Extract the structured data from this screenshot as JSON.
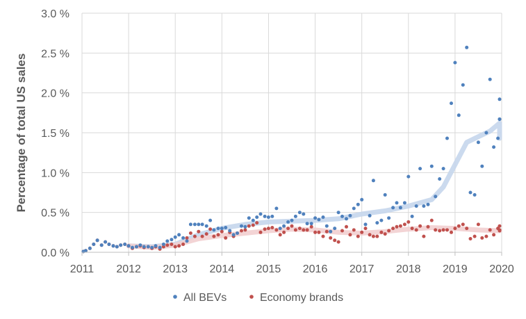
{
  "chart_data": {
    "type": "scatter",
    "title": "",
    "xlabel": "",
    "ylabel": "Percentage of total US sales",
    "xlim": [
      2011,
      2020
    ],
    "ylim": [
      0,
      3.0
    ],
    "x_ticks": [
      2011,
      2012,
      2013,
      2014,
      2015,
      2016,
      2017,
      2018,
      2019,
      2020
    ],
    "x_tick_labels": [
      "2011",
      "2012",
      "2013",
      "2014",
      "2015",
      "2016",
      "2017",
      "2018",
      "2019",
      "2020"
    ],
    "y_ticks": [
      0,
      0.5,
      1.0,
      1.5,
      2.0,
      2.5,
      3.0
    ],
    "y_tick_labels": [
      "0.0 %",
      "0.5 %",
      "1.0 %",
      "1.5 %",
      "2.0 %",
      "2.5 %",
      "3.0 %"
    ],
    "grid": true,
    "legend_position": "bottom",
    "series": [
      {
        "name": "All BEVs",
        "color": "#4f81bd",
        "trend_color": "#c5d6ec",
        "points": [
          [
            2011.0,
            0.01
          ],
          [
            2011.08,
            0.02
          ],
          [
            2011.17,
            0.05
          ],
          [
            2011.25,
            0.1
          ],
          [
            2011.33,
            0.15
          ],
          [
            2011.42,
            0.09
          ],
          [
            2011.5,
            0.13
          ],
          [
            2011.58,
            0.1
          ],
          [
            2011.67,
            0.08
          ],
          [
            2011.75,
            0.07
          ],
          [
            2011.83,
            0.09
          ],
          [
            2011.92,
            0.1
          ],
          [
            2012.0,
            0.08
          ],
          [
            2012.08,
            0.06
          ],
          [
            2012.17,
            0.07
          ],
          [
            2012.25,
            0.09
          ],
          [
            2012.33,
            0.07
          ],
          [
            2012.42,
            0.07
          ],
          [
            2012.5,
            0.06
          ],
          [
            2012.58,
            0.08
          ],
          [
            2012.67,
            0.06
          ],
          [
            2012.75,
            0.1
          ],
          [
            2012.83,
            0.14
          ],
          [
            2012.92,
            0.16
          ],
          [
            2013.0,
            0.19
          ],
          [
            2013.08,
            0.22
          ],
          [
            2013.17,
            0.18
          ],
          [
            2013.25,
            0.14
          ],
          [
            2013.33,
            0.35
          ],
          [
            2013.42,
            0.35
          ],
          [
            2013.5,
            0.35
          ],
          [
            2013.58,
            0.35
          ],
          [
            2013.67,
            0.33
          ],
          [
            2013.75,
            0.4
          ],
          [
            2013.83,
            0.28
          ],
          [
            2013.92,
            0.3
          ],
          [
            2014.0,
            0.3
          ],
          [
            2014.08,
            0.31
          ],
          [
            2014.17,
            0.27
          ],
          [
            2014.25,
            0.22
          ],
          [
            2014.33,
            0.24
          ],
          [
            2014.42,
            0.33
          ],
          [
            2014.5,
            0.32
          ],
          [
            2014.58,
            0.43
          ],
          [
            2014.67,
            0.4
          ],
          [
            2014.75,
            0.44
          ],
          [
            2014.83,
            0.48
          ],
          [
            2014.92,
            0.45
          ],
          [
            2015.0,
            0.44
          ],
          [
            2015.08,
            0.45
          ],
          [
            2015.17,
            0.55
          ],
          [
            2015.25,
            0.3
          ],
          [
            2015.33,
            0.33
          ],
          [
            2015.42,
            0.38
          ],
          [
            2015.5,
            0.4
          ],
          [
            2015.58,
            0.45
          ],
          [
            2015.67,
            0.5
          ],
          [
            2015.75,
            0.48
          ],
          [
            2015.83,
            0.36
          ],
          [
            2015.92,
            0.36
          ],
          [
            2016.0,
            0.43
          ],
          [
            2016.08,
            0.41
          ],
          [
            2016.17,
            0.44
          ],
          [
            2016.25,
            0.33
          ],
          [
            2016.33,
            0.26
          ],
          [
            2016.42,
            0.3
          ],
          [
            2016.5,
            0.5
          ],
          [
            2016.58,
            0.45
          ],
          [
            2016.67,
            0.42
          ],
          [
            2016.75,
            0.46
          ],
          [
            2016.83,
            0.55
          ],
          [
            2016.92,
            0.6
          ],
          [
            2017.0,
            0.66
          ],
          [
            2017.08,
            0.35
          ],
          [
            2017.17,
            0.46
          ],
          [
            2017.25,
            0.9
          ],
          [
            2017.33,
            0.37
          ],
          [
            2017.42,
            0.4
          ],
          [
            2017.5,
            0.72
          ],
          [
            2017.58,
            0.43
          ],
          [
            2017.67,
            0.56
          ],
          [
            2017.75,
            0.62
          ],
          [
            2017.83,
            0.56
          ],
          [
            2017.92,
            0.62
          ],
          [
            2018.0,
            0.95
          ],
          [
            2018.08,
            0.45
          ],
          [
            2018.17,
            0.58
          ],
          [
            2018.25,
            1.05
          ],
          [
            2018.33,
            0.58
          ],
          [
            2018.42,
            0.6
          ],
          [
            2018.5,
            1.08
          ],
          [
            2018.58,
            0.7
          ],
          [
            2018.67,
            0.92
          ],
          [
            2018.75,
            1.05
          ],
          [
            2018.83,
            1.43
          ],
          [
            2018.92,
            1.87
          ],
          [
            2019.0,
            2.38
          ],
          [
            2019.08,
            1.72
          ],
          [
            2019.17,
            2.1
          ],
          [
            2019.25,
            2.57
          ],
          [
            2019.33,
            0.75
          ],
          [
            2019.42,
            0.72
          ],
          [
            2019.5,
            1.38
          ],
          [
            2019.58,
            1.08
          ],
          [
            2019.67,
            1.5
          ],
          [
            2019.75,
            2.17
          ],
          [
            2019.83,
            1.32
          ],
          [
            2019.92,
            1.43
          ],
          [
            2020.0,
            1.92
          ],
          [
            2020.08,
            1.67
          ],
          [
            2020.17,
            1.67
          ],
          [
            2020.25,
            1.67
          ]
        ],
        "trend": [
          [
            2012.0,
            0.08
          ],
          [
            2012.5,
            0.07
          ],
          [
            2013.0,
            0.1
          ],
          [
            2013.5,
            0.22
          ],
          [
            2014.0,
            0.3
          ],
          [
            2014.5,
            0.35
          ],
          [
            2015.0,
            0.38
          ],
          [
            2015.5,
            0.39
          ],
          [
            2016.0,
            0.4
          ],
          [
            2016.5,
            0.42
          ],
          [
            2017.0,
            0.48
          ],
          [
            2017.5,
            0.52
          ],
          [
            2018.0,
            0.58
          ],
          [
            2018.5,
            0.66
          ],
          [
            2018.75,
            0.82
          ],
          [
            2019.0,
            1.1
          ],
          [
            2019.25,
            1.38
          ],
          [
            2019.5,
            1.45
          ],
          [
            2019.75,
            1.52
          ],
          [
            2020.0,
            1.62
          ],
          [
            2020.15,
            1.58
          ],
          [
            2020.25,
            1.43
          ]
        ]
      },
      {
        "name": "Economy brands",
        "color": "#c0504d",
        "trend_color": "#f2cfd0",
        "points": [
          [
            2011.0,
            0.01
          ],
          [
            2011.08,
            0.02
          ],
          [
            2011.17,
            0.05
          ],
          [
            2011.25,
            0.1
          ],
          [
            2011.33,
            0.15
          ],
          [
            2011.42,
            0.09
          ],
          [
            2011.5,
            0.13
          ],
          [
            2011.58,
            0.1
          ],
          [
            2011.67,
            0.08
          ],
          [
            2011.75,
            0.07
          ],
          [
            2011.83,
            0.09
          ],
          [
            2011.92,
            0.1
          ],
          [
            2012.0,
            0.08
          ],
          [
            2012.08,
            0.05
          ],
          [
            2012.17,
            0.07
          ],
          [
            2012.25,
            0.08
          ],
          [
            2012.33,
            0.06
          ],
          [
            2012.42,
            0.07
          ],
          [
            2012.5,
            0.05
          ],
          [
            2012.58,
            0.07
          ],
          [
            2012.67,
            0.04
          ],
          [
            2012.75,
            0.07
          ],
          [
            2012.83,
            0.09
          ],
          [
            2012.92,
            0.1
          ],
          [
            2013.0,
            0.07
          ],
          [
            2013.08,
            0.08
          ],
          [
            2013.17,
            0.1
          ],
          [
            2013.25,
            0.18
          ],
          [
            2013.33,
            0.24
          ],
          [
            2013.42,
            0.2
          ],
          [
            2013.5,
            0.26
          ],
          [
            2013.58,
            0.2
          ],
          [
            2013.67,
            0.23
          ],
          [
            2013.75,
            0.29
          ],
          [
            2013.83,
            0.2
          ],
          [
            2013.92,
            0.22
          ],
          [
            2014.0,
            0.26
          ],
          [
            2014.08,
            0.18
          ],
          [
            2014.17,
            0.25
          ],
          [
            2014.25,
            0.2
          ],
          [
            2014.33,
            0.24
          ],
          [
            2014.42,
            0.27
          ],
          [
            2014.5,
            0.28
          ],
          [
            2014.58,
            0.33
          ],
          [
            2014.67,
            0.34
          ],
          [
            2014.75,
            0.37
          ],
          [
            2014.83,
            0.25
          ],
          [
            2014.92,
            0.29
          ],
          [
            2015.0,
            0.3
          ],
          [
            2015.08,
            0.31
          ],
          [
            2015.17,
            0.28
          ],
          [
            2015.25,
            0.22
          ],
          [
            2015.33,
            0.25
          ],
          [
            2015.42,
            0.3
          ],
          [
            2015.5,
            0.33
          ],
          [
            2015.58,
            0.28
          ],
          [
            2015.67,
            0.3
          ],
          [
            2015.75,
            0.28
          ],
          [
            2015.83,
            0.28
          ],
          [
            2015.92,
            0.32
          ],
          [
            2016.0,
            0.25
          ],
          [
            2016.08,
            0.25
          ],
          [
            2016.17,
            0.2
          ],
          [
            2016.25,
            0.26
          ],
          [
            2016.33,
            0.18
          ],
          [
            2016.42,
            0.15
          ],
          [
            2016.5,
            0.13
          ],
          [
            2016.58,
            0.27
          ],
          [
            2016.67,
            0.32
          ],
          [
            2016.75,
            0.22
          ],
          [
            2016.83,
            0.28
          ],
          [
            2016.92,
            0.2
          ],
          [
            2017.0,
            0.25
          ],
          [
            2017.08,
            0.3
          ],
          [
            2017.17,
            0.22
          ],
          [
            2017.25,
            0.2
          ],
          [
            2017.33,
            0.2
          ],
          [
            2017.42,
            0.25
          ],
          [
            2017.5,
            0.23
          ],
          [
            2017.58,
            0.27
          ],
          [
            2017.67,
            0.3
          ],
          [
            2017.75,
            0.32
          ],
          [
            2017.83,
            0.33
          ],
          [
            2017.92,
            0.35
          ],
          [
            2018.0,
            0.38
          ],
          [
            2018.08,
            0.3
          ],
          [
            2018.17,
            0.28
          ],
          [
            2018.25,
            0.33
          ],
          [
            2018.33,
            0.2
          ],
          [
            2018.42,
            0.32
          ],
          [
            2018.5,
            0.4
          ],
          [
            2018.58,
            0.28
          ],
          [
            2018.67,
            0.27
          ],
          [
            2018.75,
            0.28
          ],
          [
            2018.83,
            0.28
          ],
          [
            2018.92,
            0.25
          ],
          [
            2019.0,
            0.3
          ],
          [
            2019.08,
            0.33
          ],
          [
            2019.17,
            0.35
          ],
          [
            2019.25,
            0.3
          ],
          [
            2019.33,
            0.17
          ],
          [
            2019.42,
            0.2
          ],
          [
            2019.5,
            0.35
          ],
          [
            2019.58,
            0.18
          ],
          [
            2019.67,
            0.2
          ],
          [
            2019.75,
            0.28
          ],
          [
            2019.83,
            0.22
          ],
          [
            2019.92,
            0.3
          ],
          [
            2020.0,
            0.33
          ],
          [
            2020.08,
            0.28
          ],
          [
            2020.17,
            0.28
          ],
          [
            2020.25,
            0.27
          ]
        ],
        "trend": [
          [
            2012.0,
            0.08
          ],
          [
            2012.5,
            0.06
          ],
          [
            2013.0,
            0.09
          ],
          [
            2013.5,
            0.17
          ],
          [
            2014.0,
            0.21
          ],
          [
            2014.5,
            0.24
          ],
          [
            2015.0,
            0.27
          ],
          [
            2015.5,
            0.29
          ],
          [
            2016.0,
            0.28
          ],
          [
            2016.5,
            0.25
          ],
          [
            2017.0,
            0.24
          ],
          [
            2017.5,
            0.26
          ],
          [
            2018.0,
            0.29
          ],
          [
            2018.5,
            0.31
          ],
          [
            2019.0,
            0.3
          ],
          [
            2019.5,
            0.28
          ],
          [
            2020.0,
            0.27
          ],
          [
            2020.25,
            0.27
          ]
        ]
      }
    ]
  }
}
